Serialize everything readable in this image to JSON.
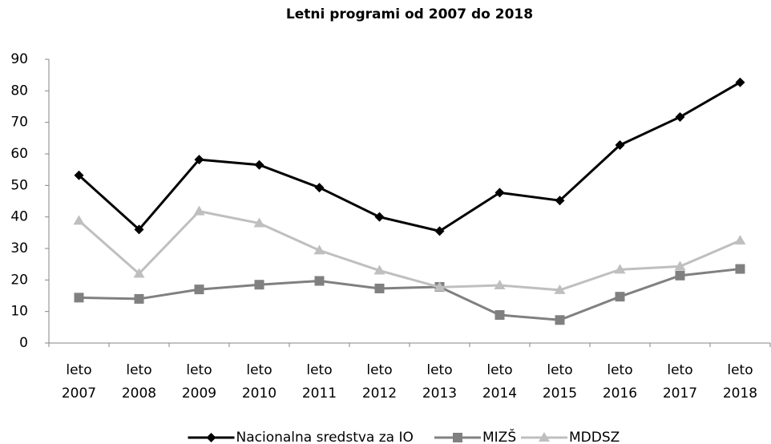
{
  "chart_data": {
    "type": "line",
    "title": "Letni programi od 2007 do 2018",
    "categories": [
      "leto 2007",
      "leto 2008",
      "leto 2009",
      "leto 2010",
      "leto 2011",
      "leto 2012",
      "leto 2013",
      "leto 2014",
      "leto 2015",
      "leto 2016",
      "leto 2017",
      "leto 2018"
    ],
    "series": [
      {
        "name": "Nacionalna sredstva za IO",
        "color": "#000000",
        "marker": "diamond",
        "values": [
          53.2,
          36,
          58.2,
          56.5,
          49.3,
          40,
          35.5,
          47.7,
          45.2,
          62.8,
          71.7,
          82.7
        ]
      },
      {
        "name": "MIZŠ",
        "color": "#808080",
        "marker": "square",
        "values": [
          14.4,
          14,
          17,
          18.5,
          19.7,
          17.3,
          17.8,
          8.9,
          7.3,
          14.7,
          21.4,
          23.5
        ]
      },
      {
        "name": "MDDSZ",
        "color": "#bfbfbf",
        "marker": "triangle",
        "values": [
          38.8,
          22,
          41.8,
          38,
          29.4,
          23,
          17.7,
          18.3,
          16.8,
          23.3,
          24.3,
          32.5
        ]
      }
    ],
    "ylim": [
      0,
      90
    ],
    "yticks": [
      0,
      10,
      20,
      30,
      40,
      50,
      60,
      70,
      80,
      90
    ],
    "grid": false,
    "legend": "bottom"
  }
}
